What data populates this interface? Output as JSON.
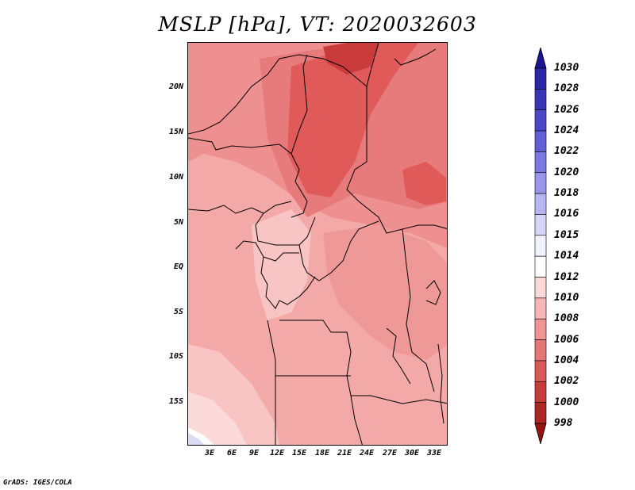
{
  "title": "MSLP [hPa], VT: 2020032603",
  "footer": "GrADS: IGES/COLA",
  "map": {
    "lat_labels": [
      "20N",
      "15N",
      "10N",
      "5N",
      "EQ",
      "5S",
      "10S",
      "15S"
    ],
    "lon_labels": [
      "3E",
      "6E",
      "9E",
      "12E",
      "15E",
      "18E",
      "21E",
      "24E",
      "27E",
      "30E",
      "33E"
    ]
  },
  "colorbar": {
    "levels": [
      "1030",
      "1028",
      "1026",
      "1024",
      "1022",
      "1020",
      "1018",
      "1016",
      "1015",
      "1014",
      "1012",
      "1010",
      "1008",
      "1006",
      "1004",
      "1002",
      "1000",
      "998"
    ],
    "colors": [
      "#1d1592",
      "#2a24a6",
      "#3a34b8",
      "#4c47c8",
      "#625ed6",
      "#7b78e0",
      "#9896ea",
      "#b8b6f2",
      "#d6d5f8",
      "#f2f2fc",
      "#ffffff",
      "#fcd8d8",
      "#f7b6b6",
      "#ef9595",
      "#e57676",
      "#d95858",
      "#c93b3b",
      "#b02424",
      "#941414"
    ]
  }
}
